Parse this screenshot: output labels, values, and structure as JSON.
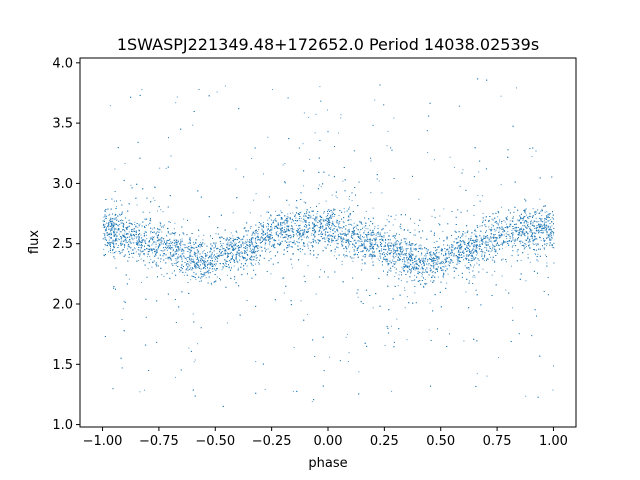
{
  "chart_data": {
    "type": "scatter",
    "title": "1SWASPJ221349.48+172652.0 Period 14038.02539s",
    "xlabel": "phase",
    "ylabel": "flux",
    "xlim": [
      -1.1,
      1.1
    ],
    "ylim": [
      0.98,
      4.04
    ],
    "xticks": [
      {
        "value": -1.0,
        "label": "−1.00"
      },
      {
        "value": -0.75,
        "label": "−0.75"
      },
      {
        "value": -0.5,
        "label": "−0.50"
      },
      {
        "value": -0.25,
        "label": "−0.25"
      },
      {
        "value": 0.0,
        "label": "0.00"
      },
      {
        "value": 0.25,
        "label": "0.25"
      },
      {
        "value": 0.5,
        "label": "0.50"
      },
      {
        "value": 0.75,
        "label": "0.75"
      },
      {
        "value": 1.0,
        "label": "1.00"
      }
    ],
    "yticks": [
      {
        "value": 1.0,
        "label": "1.0"
      },
      {
        "value": 1.5,
        "label": "1.5"
      },
      {
        "value": 2.0,
        "label": "2.0"
      },
      {
        "value": 2.5,
        "label": "2.5"
      },
      {
        "value": 3.0,
        "label": "3.0"
      },
      {
        "value": 3.5,
        "label": "3.5"
      },
      {
        "value": 4.0,
        "label": "4.0"
      }
    ],
    "point_color": "#1f77b4",
    "grid": false,
    "trend": {
      "phase": [
        -1.0,
        -0.75,
        -0.55,
        -0.4,
        -0.2,
        0.0,
        0.2,
        0.45,
        0.6,
        0.8,
        1.0
      ],
      "flux": [
        2.62,
        2.5,
        2.36,
        2.45,
        2.62,
        2.62,
        2.5,
        2.34,
        2.45,
        2.6,
        2.62
      ]
    }
  }
}
